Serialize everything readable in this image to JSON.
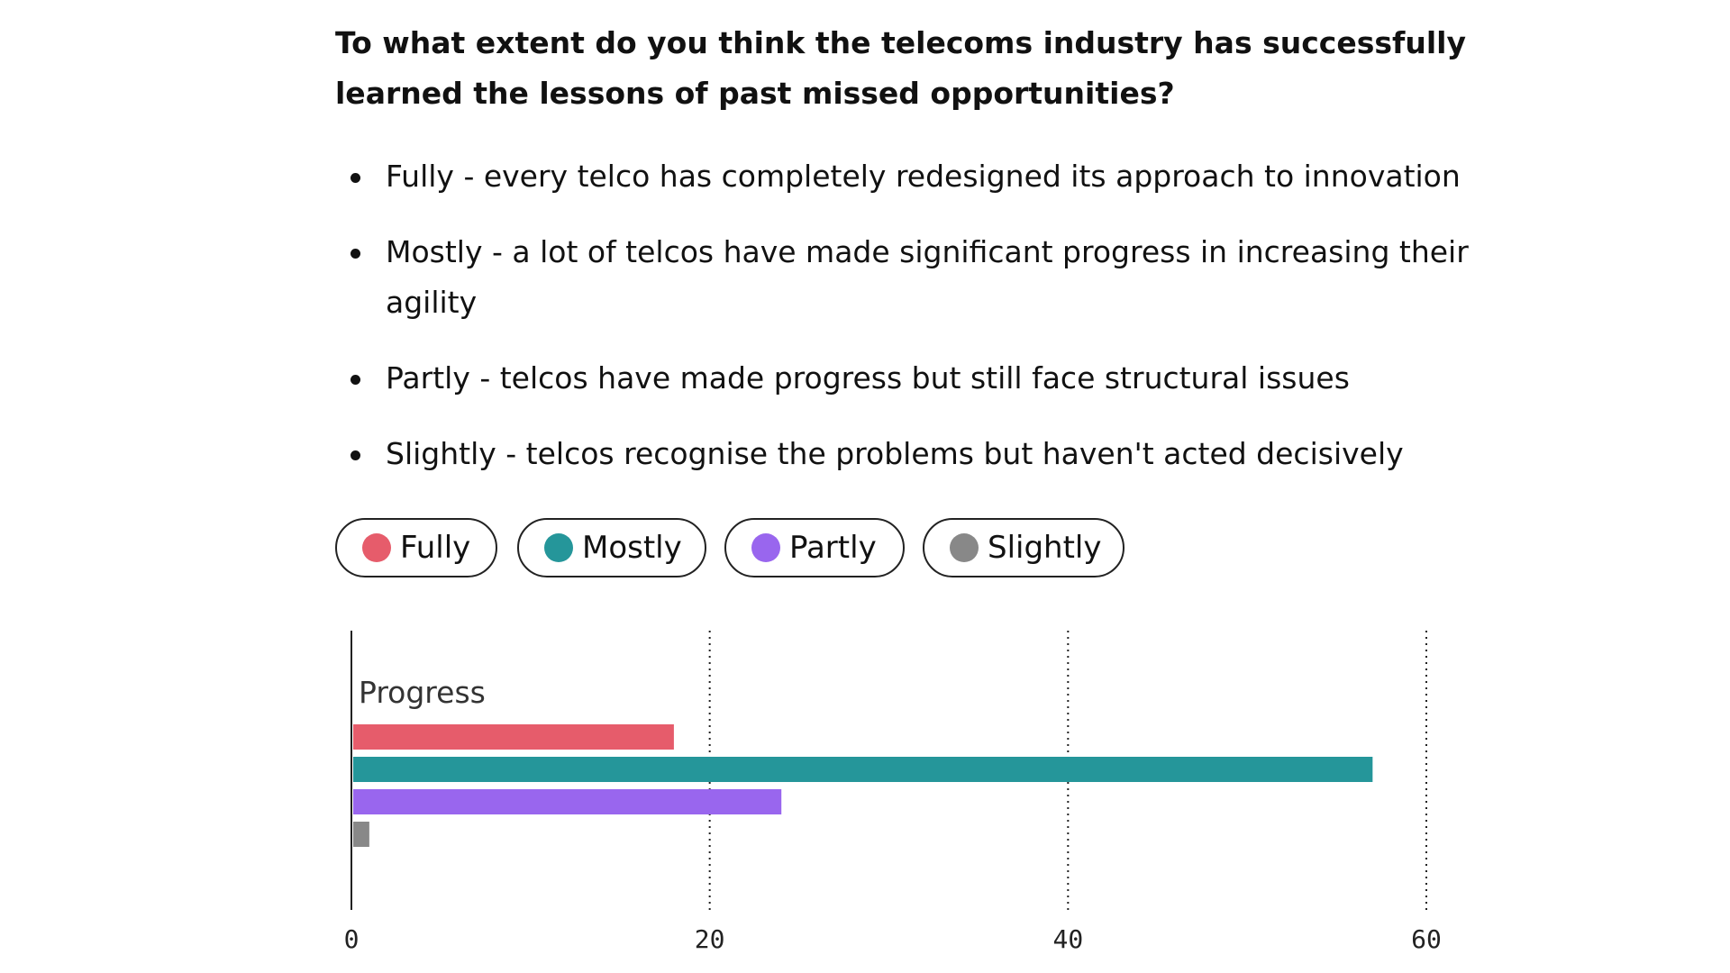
{
  "question": "To what extent do you think the telecoms industry has successfully learned the lessons of past missed opportunities?",
  "options": [
    "Fully - every telco has completely redesigned its approach to innovation",
    "Mostly - a lot of telcos have made significant progress in increasing their agility",
    "Partly - telcos have made progress but still face structural issues",
    "Slightly - telcos recognise the problems but haven't acted decisively"
  ],
  "legend": [
    {
      "label": "Fully",
      "color": "#e65c6b"
    },
    {
      "label": "Mostly",
      "color": "#25969a"
    },
    {
      "label": "Partly",
      "color": "#9966ee"
    },
    {
      "label": "Slightly",
      "color": "#888888"
    }
  ],
  "chart_data": {
    "type": "bar",
    "orientation": "horizontal",
    "categories": [
      "Progress"
    ],
    "series": [
      {
        "name": "Fully",
        "values": [
          18
        ],
        "color": "#e65c6b"
      },
      {
        "name": "Mostly",
        "values": [
          57
        ],
        "color": "#25969a"
      },
      {
        "name": "Partly",
        "values": [
          24
        ],
        "color": "#9966ee"
      },
      {
        "name": "Slightly",
        "values": [
          1
        ],
        "color": "#888888"
      }
    ],
    "xlim": [
      0,
      60
    ],
    "xticks": [
      "0",
      "20",
      "40",
      "60"
    ],
    "grid": true,
    "title": "",
    "xlabel": "",
    "ylabel": ""
  }
}
